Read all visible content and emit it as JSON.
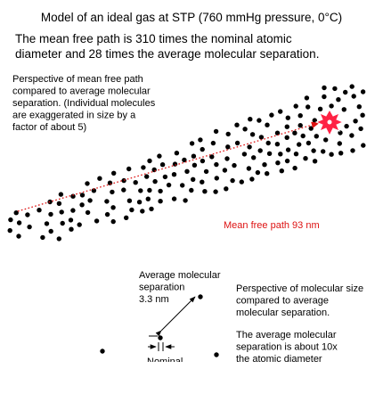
{
  "title": "Model of an ideal gas at STP (760 mmHg pressure, 0°C)",
  "intro": [
    "The mean free path is 310 times the nominal atomic",
    "diameter and 28 times the average molecular separation."
  ],
  "perspective_mfp": [
    "Perspective of mean free path",
    "compared to average molecular",
    "separation. (Individual molecules",
    "are exaggerated in size by a",
    "factor of about 5)"
  ],
  "mfp_label": "Mean free path 93 nm",
  "avg_sep_label": [
    "Average molecular",
    "separation",
    "3.3 nm"
  ],
  "nominal_label": "Nominal",
  "perspective_size": [
    "Perspective of molecular size",
    "compared to average",
    "molecular separation."
  ],
  "ratio_note": [
    "The average molecular",
    "separation is about 10x",
    "the atomic diameter"
  ],
  "colors": {
    "path": "#dd1111",
    "molecule": "#000000",
    "collision": "#ff2244"
  }
}
